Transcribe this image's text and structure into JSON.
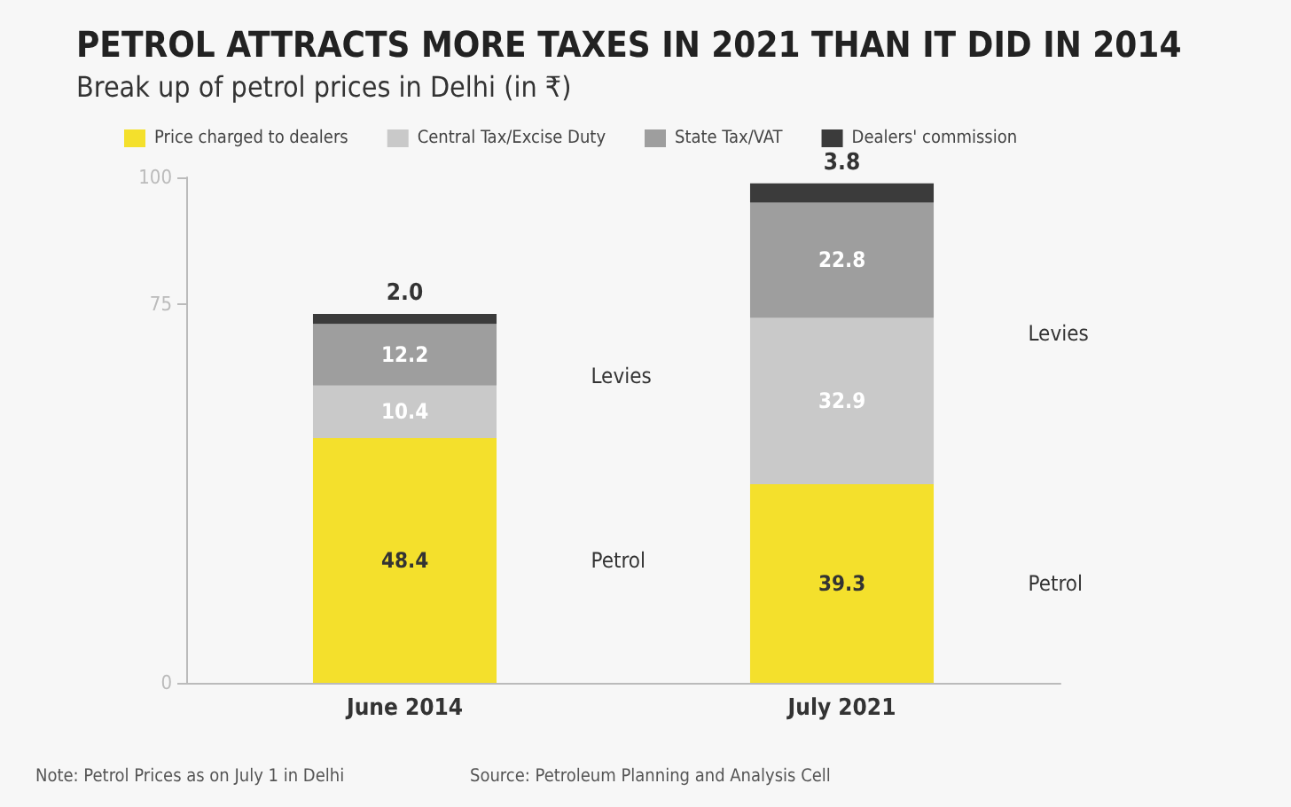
{
  "chart_data": {
    "type": "bar",
    "stacked": true,
    "title": "PETROL ATTRACTS MORE TAXES IN 2021 THAN IT DID IN 2014",
    "subtitle": "Break up of petrol prices in Delhi (in ₹)",
    "categories": [
      "June 2014",
      "July 2021"
    ],
    "series": [
      {
        "name": "Price charged to dealers",
        "color": "#f4e02c",
        "values": [
          48.4,
          39.3
        ],
        "value_labels": [
          "48.4",
          "39.3"
        ]
      },
      {
        "name": "Central Tax/Excise Duty",
        "color": "#c9c9c9",
        "values": [
          10.4,
          32.9
        ],
        "value_labels": [
          "10.4",
          "32.9"
        ]
      },
      {
        "name": "State Tax/VAT",
        "color": "#9e9e9e",
        "values": [
          12.2,
          22.8
        ],
        "value_labels": [
          "12.2",
          "22.8"
        ]
      },
      {
        "name": "Dealers' commission",
        "color": "#3b3b3b",
        "values": [
          2.0,
          3.8
        ],
        "value_labels": [
          "2.0",
          "3.8"
        ]
      }
    ],
    "ylim": [
      0,
      100
    ],
    "yticks": [
      0,
      75,
      100
    ],
    "grid": false,
    "legend": "top left",
    "annotations": [
      "Levies",
      "Petrol",
      "Levies",
      "Petrol",
      "Note: Petrol Prices as on July 1 in Delhi",
      "Source: Petroleum Planning and Analysis Cell"
    ]
  }
}
